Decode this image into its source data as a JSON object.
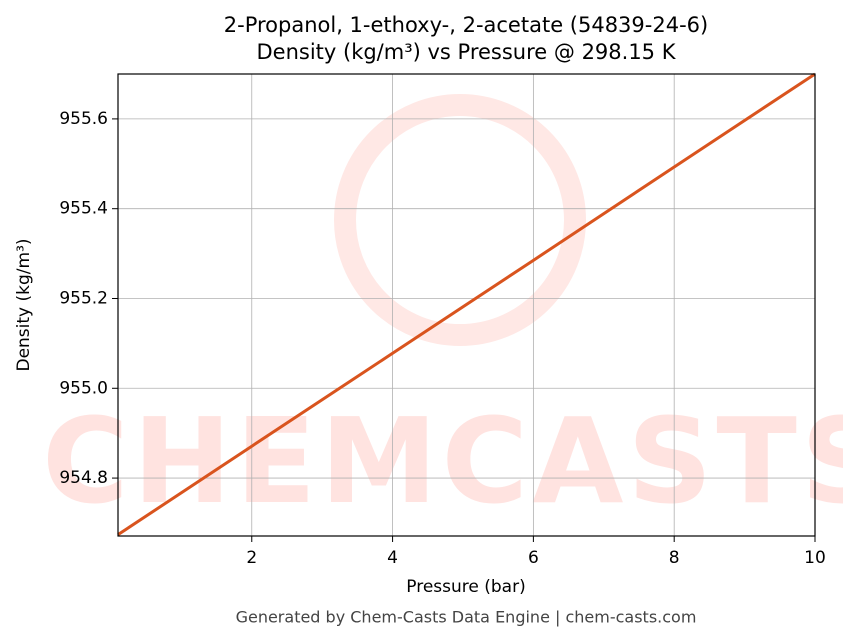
{
  "chart_data": {
    "type": "line",
    "title": "2-Propanol, 1-ethoxy-, 2-acetate (54839-24-6)",
    "subtitle": "Density (kg/m³) vs Pressure @ 298.15 K",
    "x_label": "Pressure (bar)",
    "y_label": "Density (kg/m³)",
    "footer": "Generated by Chem-Casts Data Engine | chem-casts.com",
    "watermark": "CHEMCASTS",
    "x": [
      0.1,
      2,
      4,
      6,
      8,
      10
    ],
    "series": [
      {
        "name": "Density",
        "color": "#d9541e",
        "values": [
          954.674,
          954.871,
          955.078,
          955.285,
          955.493,
          955.7
        ]
      }
    ],
    "xlim": [
      0.1,
      10
    ],
    "ylim": [
      954.671,
      955.7
    ],
    "xticks": [
      2,
      4,
      6,
      8,
      10
    ],
    "yticks": [
      {
        "value": 954.8,
        "label": "954.8"
      },
      {
        "value": 955.0,
        "label": "955.0"
      },
      {
        "value": 955.2,
        "label": "955.2"
      },
      {
        "value": 955.4,
        "label": "955.4"
      },
      {
        "value": 955.6,
        "label": "955.6"
      }
    ],
    "grid": true
  }
}
